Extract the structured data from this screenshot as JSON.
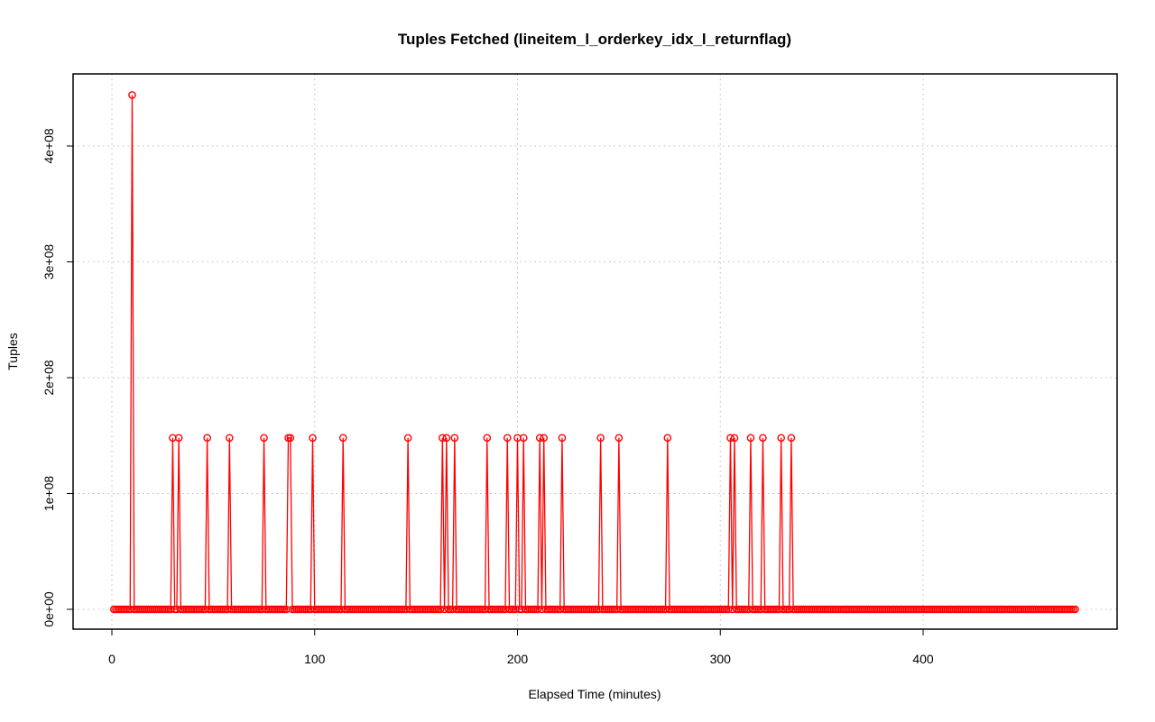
{
  "chart_data": {
    "type": "line",
    "title": "Tuples Fetched (lineitem_l_orderkey_idx_l_returnflag)",
    "xlabel": "Elapsed Time (minutes)",
    "ylabel": "Tuples",
    "xlim": [
      0,
      475
    ],
    "ylim": [
      0,
      445000000
    ],
    "x_ticks": [
      0,
      100,
      200,
      300,
      400
    ],
    "x_tick_labels": [
      "0",
      "100",
      "200",
      "300",
      "400"
    ],
    "y_ticks": [
      0,
      100000000,
      200000000,
      300000000,
      400000000
    ],
    "y_tick_labels": [
      "0e+00",
      "1e+08",
      "2e+08",
      "3e+08",
      "4e+08"
    ],
    "grid": true,
    "line_color": "#ff0000",
    "x_start": 1,
    "x_end": 475,
    "baseline_value": 0,
    "spikes": [
      {
        "x": 10,
        "y": 444000000
      },
      {
        "x": 30,
        "y": 148000000
      },
      {
        "x": 33,
        "y": 148000000
      },
      {
        "x": 47,
        "y": 148000000
      },
      {
        "x": 58,
        "y": 148000000
      },
      {
        "x": 75,
        "y": 148000000
      },
      {
        "x": 87,
        "y": 148000000
      },
      {
        "x": 88,
        "y": 148000000
      },
      {
        "x": 99,
        "y": 148000000
      },
      {
        "x": 114,
        "y": 148000000
      },
      {
        "x": 146,
        "y": 148000000
      },
      {
        "x": 163,
        "y": 148000000
      },
      {
        "x": 165,
        "y": 148000000
      },
      {
        "x": 169,
        "y": 148000000
      },
      {
        "x": 185,
        "y": 148000000
      },
      {
        "x": 195,
        "y": 148000000
      },
      {
        "x": 200,
        "y": 148000000
      },
      {
        "x": 203,
        "y": 148000000
      },
      {
        "x": 211,
        "y": 148000000
      },
      {
        "x": 213,
        "y": 148000000
      },
      {
        "x": 222,
        "y": 148000000
      },
      {
        "x": 241,
        "y": 148000000
      },
      {
        "x": 250,
        "y": 148000000
      },
      {
        "x": 274,
        "y": 148000000
      },
      {
        "x": 305,
        "y": 148000000
      },
      {
        "x": 307,
        "y": 148000000
      },
      {
        "x": 315,
        "y": 148000000
      },
      {
        "x": 321,
        "y": 148000000
      },
      {
        "x": 330,
        "y": 148000000
      },
      {
        "x": 335,
        "y": 148000000
      }
    ]
  }
}
